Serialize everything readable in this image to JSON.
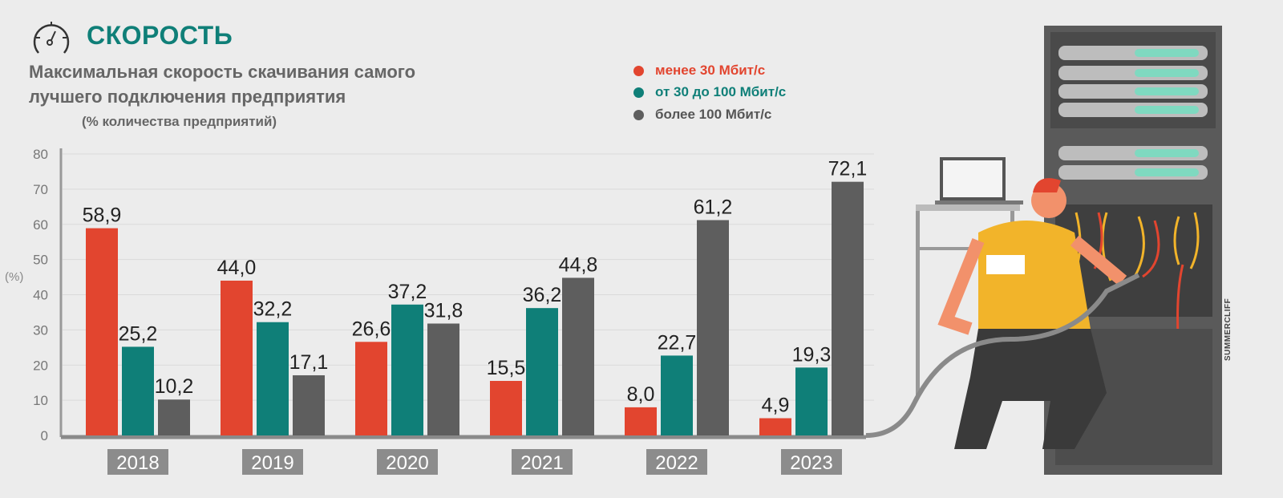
{
  "header": {
    "title": "СКОРОСТЬ",
    "subtitle_line1": "Максимальная скорость скачивания самого",
    "subtitle_line2": "лучшего подключения предприятия",
    "unit_note": "(% количества предприятий)"
  },
  "watermark": "SUMMERCLIFF",
  "chart_data": {
    "type": "bar",
    "title": "Максимальная скорость скачивания самого лучшего подключения предприятия",
    "ylabel": "(%)",
    "ylim": [
      0,
      80
    ],
    "yticks": [
      "0",
      "10",
      "20",
      "30",
      "40",
      "50",
      "60",
      "70",
      "80"
    ],
    "categories": [
      "2018",
      "2019",
      "2020",
      "2021",
      "2022",
      "2023"
    ],
    "legend_position": "top-right",
    "series": [
      {
        "name": "менее 30 Мбит/с",
        "color": "#e2452f",
        "values": [
          58.9,
          44.0,
          26.6,
          15.5,
          8.0,
          4.9
        ],
        "labels": [
          "58,9",
          "44,0",
          "26,6",
          "15,5",
          "8,0",
          "4,9"
        ]
      },
      {
        "name": "от 30 до 100 Мбит/с",
        "color": "#0f7f78",
        "values": [
          25.2,
          32.2,
          37.2,
          36.2,
          22.7,
          19.3
        ],
        "labels": [
          "25,2",
          "32,2",
          "37,2",
          "36,2",
          "22,7",
          "19,3"
        ]
      },
      {
        "name": "более 100 Мбит/с",
        "color": "#5e5e5e",
        "values": [
          10.2,
          17.1,
          31.8,
          44.8,
          61.2,
          72.1
        ],
        "labels": [
          "10,2",
          "17,1",
          "31,8",
          "44,8",
          "61,2",
          "72,1"
        ]
      }
    ]
  }
}
